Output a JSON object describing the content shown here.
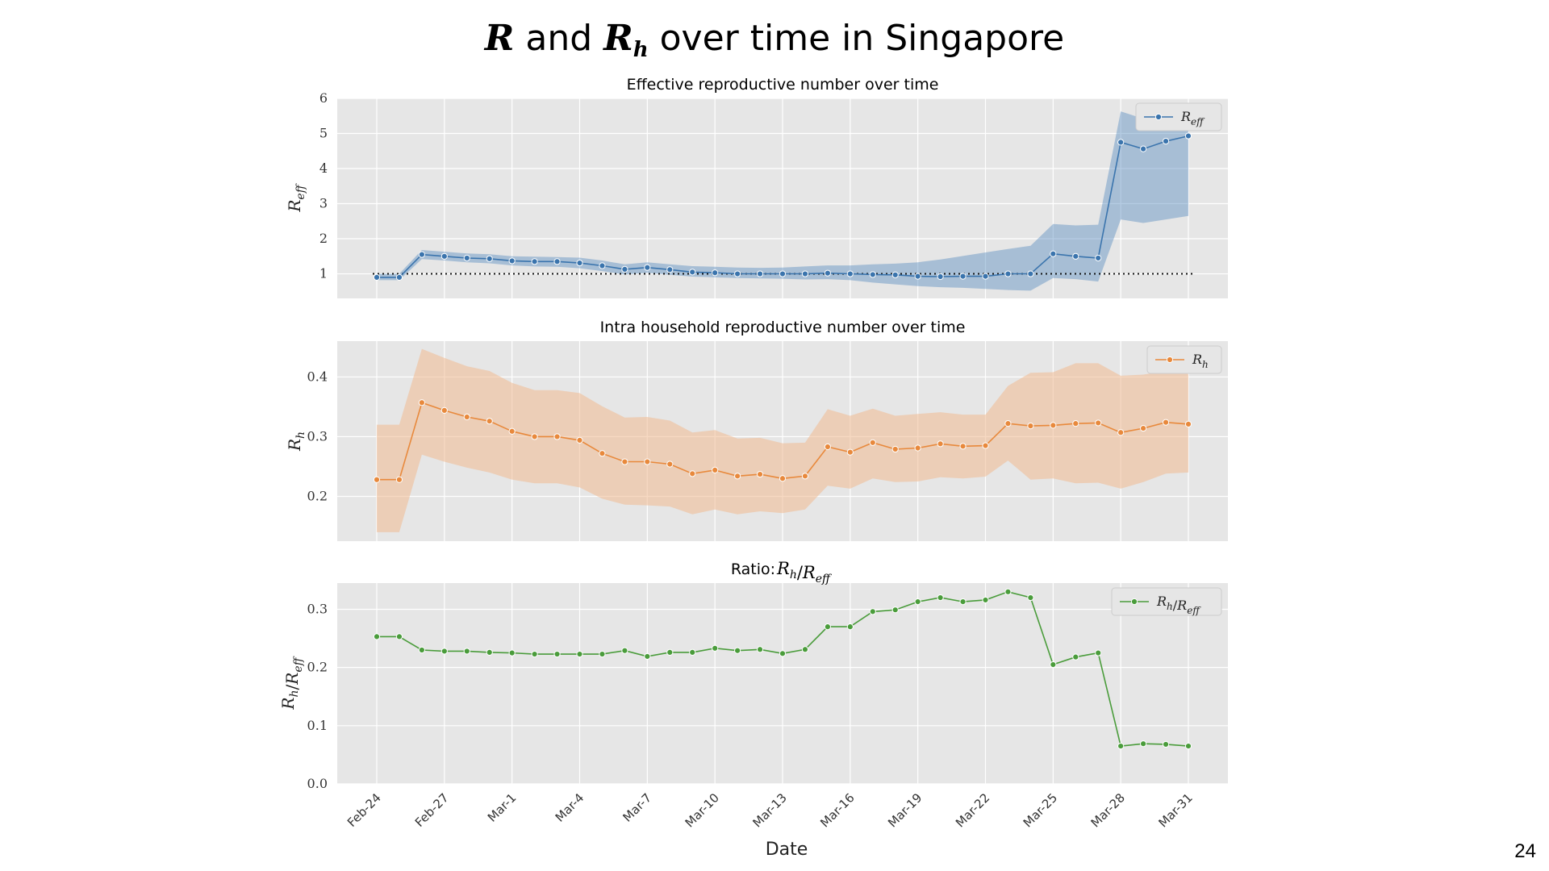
{
  "slide": {
    "title_parts": [
      "R",
      "and",
      "R",
      "h",
      "over time in Singapore"
    ],
    "page_number": "24"
  },
  "chart_data": [
    {
      "type": "line",
      "title": "Effective reproductive number over time",
      "ylabel": "R_eff",
      "xlabel": "",
      "legend": {
        "label": "R_eff",
        "position": "upper-right"
      },
      "color": "#3a74ad",
      "band_color": "#5b8fc0",
      "reference_line": {
        "y": 1,
        "style": "dotted"
      },
      "ylim": [
        0.3,
        6.0
      ],
      "yticks": [
        1,
        2,
        3,
        4,
        5,
        6
      ],
      "x": [
        "Feb-24",
        "Feb-25",
        "Feb-26",
        "Feb-27",
        "Feb-28",
        "Feb-29",
        "Mar-1",
        "Mar-2",
        "Mar-3",
        "Mar-4",
        "Mar-5",
        "Mar-6",
        "Mar-7",
        "Mar-8",
        "Mar-9",
        "Mar-10",
        "Mar-11",
        "Mar-12",
        "Mar-13",
        "Mar-14",
        "Mar-15",
        "Mar-16",
        "Mar-17",
        "Mar-18",
        "Mar-19",
        "Mar-20",
        "Mar-21",
        "Mar-22",
        "Mar-23",
        "Mar-24",
        "Mar-25",
        "Mar-26",
        "Mar-27",
        "Mar-28",
        "Mar-29",
        "Mar-30",
        "Mar-31"
      ],
      "values": [
        0.9,
        0.9,
        1.55,
        1.5,
        1.45,
        1.43,
        1.37,
        1.35,
        1.35,
        1.31,
        1.23,
        1.13,
        1.18,
        1.12,
        1.05,
        1.03,
        1.0,
        1.0,
        1.0,
        1.0,
        1.02,
        1.0,
        0.98,
        0.97,
        0.93,
        0.92,
        0.93,
        0.93,
        1.0,
        1.0,
        1.57,
        1.5,
        1.45,
        4.75,
        4.56,
        4.78,
        4.93
      ],
      "lower": [
        0.82,
        0.82,
        1.42,
        1.38,
        1.33,
        1.3,
        1.24,
        1.21,
        1.2,
        1.16,
        1.08,
        0.98,
        1.03,
        0.97,
        0.92,
        0.9,
        0.88,
        0.87,
        0.86,
        0.84,
        0.85,
        0.82,
        0.75,
        0.7,
        0.65,
        0.62,
        0.6,
        0.57,
        0.54,
        0.52,
        0.88,
        0.85,
        0.78,
        2.55,
        2.45,
        2.55,
        2.65
      ],
      "upper": [
        1.0,
        1.0,
        1.68,
        1.63,
        1.58,
        1.56,
        1.5,
        1.49,
        1.48,
        1.46,
        1.38,
        1.27,
        1.33,
        1.27,
        1.22,
        1.2,
        1.18,
        1.17,
        1.18,
        1.21,
        1.24,
        1.24,
        1.27,
        1.29,
        1.33,
        1.41,
        1.51,
        1.61,
        1.71,
        1.8,
        2.42,
        2.38,
        2.4,
        5.63,
        5.42,
        5.28,
        5.3
      ]
    },
    {
      "type": "line",
      "title": "Intra household reproductive number over time",
      "ylabel": "R_h",
      "xlabel": "",
      "legend": {
        "label": "R_h",
        "position": "upper-right"
      },
      "color": "#e8893c",
      "band_color": "#f0b98f",
      "ylim": [
        0.125,
        0.46
      ],
      "yticks": [
        0.2,
        0.3,
        0.4
      ],
      "x": [
        "Feb-24",
        "Feb-25",
        "Feb-26",
        "Feb-27",
        "Feb-28",
        "Feb-29",
        "Mar-1",
        "Mar-2",
        "Mar-3",
        "Mar-4",
        "Mar-5",
        "Mar-6",
        "Mar-7",
        "Mar-8",
        "Mar-9",
        "Mar-10",
        "Mar-11",
        "Mar-12",
        "Mar-13",
        "Mar-14",
        "Mar-15",
        "Mar-16",
        "Mar-17",
        "Mar-18",
        "Mar-19",
        "Mar-20",
        "Mar-21",
        "Mar-22",
        "Mar-23",
        "Mar-24",
        "Mar-25",
        "Mar-26",
        "Mar-27",
        "Mar-28",
        "Mar-29",
        "Mar-30",
        "Mar-31"
      ],
      "values": [
        0.228,
        0.228,
        0.357,
        0.344,
        0.333,
        0.326,
        0.309,
        0.3,
        0.3,
        0.294,
        0.272,
        0.258,
        0.258,
        0.254,
        0.238,
        0.244,
        0.234,
        0.237,
        0.23,
        0.234,
        0.283,
        0.274,
        0.29,
        0.279,
        0.281,
        0.288,
        0.284,
        0.285,
        0.322,
        0.318,
        0.319,
        0.322,
        0.323,
        0.307,
        0.314,
        0.324,
        0.321
      ],
      "lower": [
        0.14,
        0.14,
        0.27,
        0.258,
        0.248,
        0.24,
        0.228,
        0.222,
        0.222,
        0.215,
        0.196,
        0.186,
        0.185,
        0.183,
        0.17,
        0.178,
        0.17,
        0.175,
        0.172,
        0.178,
        0.218,
        0.213,
        0.23,
        0.224,
        0.225,
        0.232,
        0.23,
        0.233,
        0.26,
        0.228,
        0.23,
        0.222,
        0.223,
        0.213,
        0.224,
        0.238,
        0.24
      ],
      "upper": [
        0.32,
        0.32,
        0.447,
        0.432,
        0.418,
        0.41,
        0.39,
        0.378,
        0.378,
        0.373,
        0.351,
        0.332,
        0.333,
        0.327,
        0.307,
        0.311,
        0.297,
        0.298,
        0.289,
        0.29,
        0.346,
        0.335,
        0.347,
        0.335,
        0.338,
        0.341,
        0.337,
        0.337,
        0.385,
        0.407,
        0.408,
        0.423,
        0.423,
        0.402,
        0.404,
        0.41,
        0.405
      ]
    },
    {
      "type": "line",
      "title": "Ratio: R_h/R_eff",
      "ylabel": "R_h/R_eff",
      "xlabel": "Date",
      "legend": {
        "label": "R_h/R_eff",
        "position": "upper-right"
      },
      "color": "#4a9c3b",
      "ylim": [
        0.0,
        0.345
      ],
      "yticks": [
        0.0,
        0.1,
        0.2,
        0.3
      ],
      "x": [
        "Feb-24",
        "Feb-25",
        "Feb-26",
        "Feb-27",
        "Feb-28",
        "Feb-29",
        "Mar-1",
        "Mar-2",
        "Mar-3",
        "Mar-4",
        "Mar-5",
        "Mar-6",
        "Mar-7",
        "Mar-8",
        "Mar-9",
        "Mar-10",
        "Mar-11",
        "Mar-12",
        "Mar-13",
        "Mar-14",
        "Mar-15",
        "Mar-16",
        "Mar-17",
        "Mar-18",
        "Mar-19",
        "Mar-20",
        "Mar-21",
        "Mar-22",
        "Mar-23",
        "Mar-24",
        "Mar-25",
        "Mar-26",
        "Mar-27",
        "Mar-28",
        "Mar-29",
        "Mar-30",
        "Mar-31"
      ],
      "values": [
        0.253,
        0.253,
        0.23,
        0.228,
        0.228,
        0.226,
        0.225,
        0.223,
        0.223,
        0.223,
        0.223,
        0.229,
        0.219,
        0.226,
        0.226,
        0.233,
        0.229,
        0.231,
        0.224,
        0.231,
        0.27,
        0.27,
        0.296,
        0.299,
        0.313,
        0.32,
        0.313,
        0.316,
        0.33,
        0.32,
        0.205,
        0.218,
        0.225,
        0.065,
        0.069,
        0.068,
        0.065
      ]
    }
  ],
  "x_axis": {
    "tick_labels": [
      "Feb-24",
      "Feb-27",
      "Mar-1",
      "Mar-4",
      "Mar-7",
      "Mar-10",
      "Mar-13",
      "Mar-16",
      "Mar-19",
      "Mar-22",
      "Mar-25",
      "Mar-28",
      "Mar-31"
    ]
  }
}
